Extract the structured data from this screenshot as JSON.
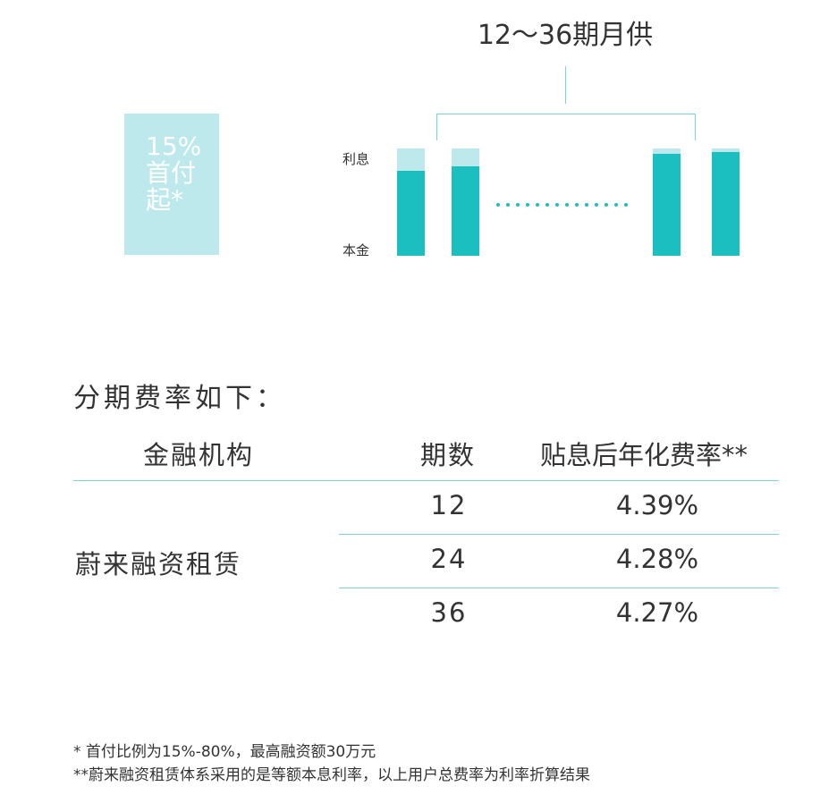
{
  "diagram": {
    "term_label": "12～36期月供",
    "down_payment_lines": [
      "15%",
      "首付",
      "起*"
    ],
    "legend_interest": "利息",
    "legend_principal": "本金",
    "bars": [
      {
        "interest_share": 0.21
      },
      {
        "interest_share": 0.17
      },
      {
        "interest_share": 0.05
      },
      {
        "interest_share": 0.03
      }
    ],
    "colors": {
      "principal": "#1bbfbf",
      "interest": "#bde8ec",
      "line": "#7fd3d6"
    }
  },
  "rates": {
    "title": "分期费率如下：",
    "headers": {
      "institution": "金融机构",
      "periods": "期数",
      "rate": "贴息后年化费率**"
    },
    "institution": "蔚来融资租赁",
    "rows": [
      {
        "periods": "12",
        "rate": "4.39%"
      },
      {
        "periods": "24",
        "rate": "4.28%"
      },
      {
        "periods": "36",
        "rate": "4.27%"
      }
    ]
  },
  "notes": [
    "*  首付比例为15%-80%，最高融资额30万元",
    "**蔚来融资租赁体系采用的是等额本息利率，以上用户总费率为利率折算结果"
  ]
}
